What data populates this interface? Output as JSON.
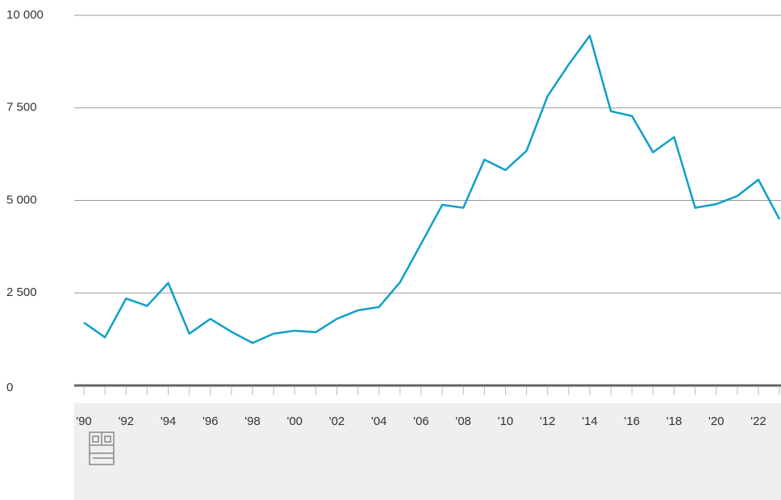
{
  "chart_data": {
    "type": "line",
    "categories": [
      "'90",
      null,
      "'92",
      null,
      "'94",
      null,
      "'96",
      null,
      "'98",
      null,
      "'00",
      null,
      "'02",
      null,
      "'04",
      null,
      "'06",
      null,
      "'08",
      null,
      "'10",
      null,
      "'12",
      null,
      "'14",
      null,
      "'16",
      null,
      "'18",
      null,
      "'20",
      null,
      "'22",
      null
    ],
    "series": [
      {
        "color": "#0e9fc9",
        "values": [
          1700,
          1300,
          2350,
          2150,
          2770,
          1400,
          1800,
          1450,
          1150,
          1400,
          1480,
          1440,
          1800,
          2030,
          2120,
          2790,
          3830,
          4880,
          4800,
          6100,
          5820,
          6340,
          7820,
          8670,
          9450,
          7410,
          7280,
          6300,
          6710,
          4800,
          4900,
          5120,
          5560,
          4490
        ]
      }
    ],
    "ylim": [
      0,
      10000
    ],
    "yticks": [
      0,
      {
        "value": 2500,
        "label": "2 500"
      },
      {
        "value": 5000,
        "label": "5 000"
      },
      {
        "value": 7500,
        "label": "7 500"
      },
      {
        "value": 10000,
        "label": "10 000"
      }
    ],
    "grid": true
  }
}
